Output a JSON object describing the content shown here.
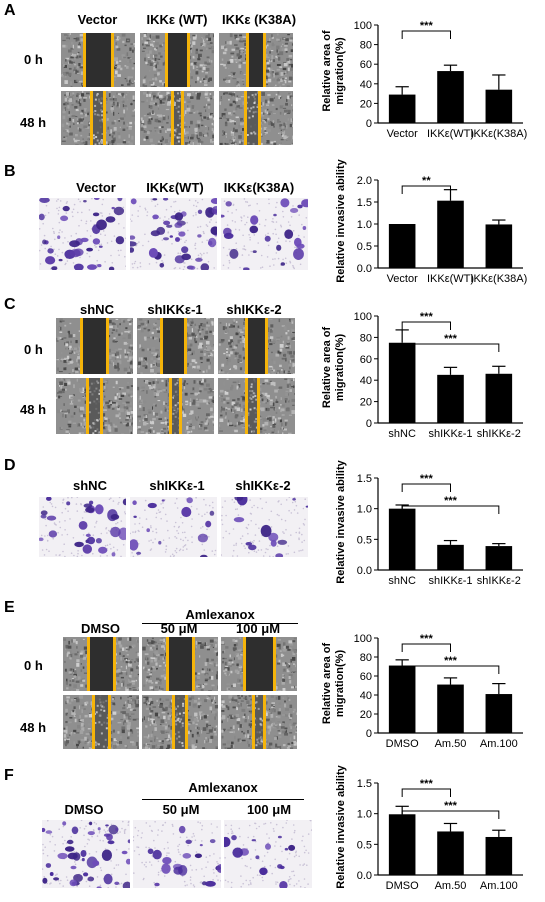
{
  "colors": {
    "wound_line": "#f5b40a",
    "bar": "#000000",
    "stain": "#5b3aa8",
    "gray_field": "#8d8d8d"
  },
  "panels": [
    {
      "letter": "A",
      "kind": "wound",
      "headers": [
        "Vector",
        "IKKε (WT)",
        "IKKε (K38A)"
      ],
      "rows": [
        "0 h",
        "48 h"
      ],
      "chart_data": {
        "type": "bar",
        "categories": [
          "Vector",
          "IKKε(WT)",
          "IKKε(K38A)"
        ],
        "values": [
          29,
          53,
          34
        ],
        "errors": [
          8,
          6,
          15
        ],
        "ylabel": "Relative area of migration(%)",
        "ylim": [
          0,
          100
        ],
        "yticks": [
          "0",
          "20",
          "40",
          "60",
          "80",
          "100"
        ],
        "significance": [
          {
            "from": 0,
            "to": 1,
            "label": "***"
          }
        ]
      }
    },
    {
      "letter": "B",
      "kind": "invasion",
      "headers": [
        "Vector",
        "IKKε(WT)",
        "IKKε(K38A)"
      ],
      "chart_data": {
        "type": "bar",
        "categories": [
          "Vector",
          "IKKε(WT)",
          "IKKε(K38A)"
        ],
        "values": [
          1.0,
          1.53,
          0.99
        ],
        "errors": [
          0,
          0.25,
          0.1
        ],
        "ylabel": "Relative invasive ability",
        "ylim": [
          0,
          2.0
        ],
        "yticks": [
          "0.0",
          "0.5",
          "1.0",
          "1.5",
          "2.0"
        ],
        "significance": [
          {
            "from": 0,
            "to": 1,
            "label": "**"
          }
        ]
      }
    },
    {
      "letter": "C",
      "kind": "wound",
      "headers": [
        "shNC",
        "shIKKε-1",
        "shIKKε-2"
      ],
      "rows": [
        "0 h",
        "48 h"
      ],
      "chart_data": {
        "type": "bar",
        "categories": [
          "shNC",
          "shIKKε-1",
          "shIKKε-2"
        ],
        "values": [
          75,
          45,
          46
        ],
        "errors": [
          12,
          7,
          7
        ],
        "ylabel": "Relative area of migration(%)",
        "ylim": [
          0,
          100
        ],
        "yticks": [
          "0",
          "20",
          "40",
          "60",
          "80",
          "100"
        ],
        "significance": [
          {
            "from": 0,
            "to": 1,
            "label": "***"
          },
          {
            "from": 0,
            "to": 2,
            "label": "***"
          }
        ]
      }
    },
    {
      "letter": "D",
      "kind": "invasion",
      "headers": [
        "shNC",
        "shIKKε-1",
        "shIKKε-2"
      ],
      "chart_data": {
        "type": "bar",
        "categories": [
          "shNC",
          "shIKKε-1",
          "shIKKε-2"
        ],
        "values": [
          1.0,
          0.41,
          0.39
        ],
        "errors": [
          0.06,
          0.07,
          0.04
        ],
        "ylabel": "Relative invasive ability",
        "ylim": [
          0,
          1.5
        ],
        "yticks": [
          "0.0",
          "0.5",
          "1.0",
          "1.5"
        ],
        "significance": [
          {
            "from": 0,
            "to": 1,
            "label": "***"
          },
          {
            "from": 0,
            "to": 2,
            "label": "***"
          }
        ]
      }
    },
    {
      "letter": "E",
      "kind": "wound",
      "group_label": "Amlexanox",
      "headers": [
        "DMSO",
        "50 μM",
        "100 μM"
      ],
      "rows": [
        "0 h",
        "48 h"
      ],
      "chart_data": {
        "type": "bar",
        "categories": [
          "DMSO",
          "Am.50",
          "Am.100"
        ],
        "values": [
          71,
          51,
          41
        ],
        "errors": [
          6,
          7,
          11
        ],
        "ylabel": "Relative area of migration(%)",
        "ylim": [
          0,
          100
        ],
        "yticks": [
          "0",
          "20",
          "40",
          "60",
          "80",
          "100"
        ],
        "significance": [
          {
            "from": 0,
            "to": 1,
            "label": "***"
          },
          {
            "from": 0,
            "to": 2,
            "label": "***"
          }
        ]
      }
    },
    {
      "letter": "F",
      "kind": "invasion",
      "group_label": "Amlexanox",
      "headers": [
        "DMSO",
        "50 μM",
        "100 μM"
      ],
      "chart_data": {
        "type": "bar",
        "categories": [
          "DMSO",
          "Am.50",
          "Am.100"
        ],
        "values": [
          0.99,
          0.71,
          0.62
        ],
        "errors": [
          0.13,
          0.13,
          0.11
        ],
        "ylabel": "Relative invasive ability",
        "ylim": [
          0,
          1.5
        ],
        "yticks": [
          "0.0",
          "0.5",
          "1.0",
          "1.5"
        ],
        "significance": [
          {
            "from": 0,
            "to": 1,
            "label": "***"
          },
          {
            "from": 0,
            "to": 2,
            "label": "***"
          }
        ]
      }
    }
  ]
}
